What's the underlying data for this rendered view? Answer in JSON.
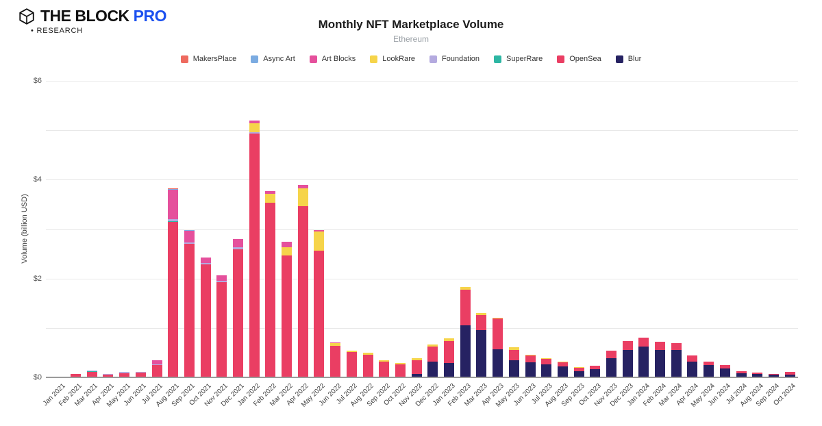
{
  "header": {
    "logo_text": "THE BLOCK",
    "logo_pro": "PRO",
    "logo_sub": "• RESEARCH"
  },
  "colors": {
    "logo_blue": "#1b50ef",
    "grid": "#e8e8e8",
    "axis": "#9b9b9b",
    "tick_text": "#555555",
    "label_text": "#3c3c3c"
  },
  "chart_data": {
    "type": "bar",
    "stacked": true,
    "title": "Monthly NFT Marketplace Volume",
    "subtitle": "Ethereum",
    "xlabel": "",
    "ylabel": "Volume (billion USD)",
    "ylim": [
      0,
      6
    ],
    "yticks_labeled": [
      0,
      2,
      4,
      6
    ],
    "yticks_minor": [
      1,
      3,
      5
    ],
    "ytick_prefix": "$",
    "grid": true,
    "legend_position": "top",
    "stack_order": "bottom-to-top is reverse of series list (Blur at bottom, MakersPlace on top)",
    "categories": [
      "Jan 2021",
      "Feb 2021",
      "Mar 2021",
      "Apr 2021",
      "May 2021",
      "Jun 2021",
      "Jul 2021",
      "Aug 2021",
      "Sep 2021",
      "Oct 2021",
      "Nov 2021",
      "Dec 2021",
      "Jan 2022",
      "Feb 2022",
      "Mar 2022",
      "Apr 2022",
      "May 2022",
      "Jun 2022",
      "Jul 2022",
      "Aug 2022",
      "Sep 2022",
      "Oct 2022",
      "Nov 2022",
      "Dec 2022",
      "Jan 2023",
      "Feb 2023",
      "Mar 2023",
      "Apr 2023",
      "May 2023",
      "Jun 2023",
      "Jul 2023",
      "Aug 2023",
      "Sep 2023",
      "Oct 2023",
      "Nov 2023",
      "Dec 2023",
      "Jan 2024",
      "Feb 2024",
      "Mar 2024",
      "Apr 2024",
      "May 2024",
      "Jun 2024",
      "Jul 2024",
      "Aug 2024",
      "Sep 2024",
      "Oct 2024"
    ],
    "series": [
      {
        "name": "MakersPlace",
        "color": "#ee6a5f",
        "values": [
          0,
          0,
          0,
          0,
          0,
          0,
          0,
          0.02,
          0,
          0,
          0,
          0,
          0,
          0,
          0,
          0,
          0,
          0,
          0,
          0,
          0,
          0,
          0,
          0,
          0,
          0,
          0,
          0,
          0,
          0,
          0,
          0,
          0,
          0,
          0,
          0,
          0,
          0,
          0,
          0,
          0,
          0,
          0,
          0,
          0,
          0
        ]
      },
      {
        "name": "Async Art",
        "color": "#7babe1",
        "values": [
          0,
          0,
          0,
          0,
          0,
          0,
          0,
          0.01,
          0.01,
          0,
          0,
          0,
          0,
          0,
          0,
          0,
          0,
          0,
          0,
          0,
          0,
          0,
          0,
          0,
          0,
          0,
          0,
          0,
          0,
          0,
          0,
          0,
          0,
          0,
          0,
          0,
          0,
          0,
          0,
          0,
          0,
          0,
          0,
          0,
          0,
          0
        ]
      },
      {
        "name": "Art Blocks",
        "color": "#e5509c",
        "values": [
          0,
          0,
          0,
          0,
          0,
          0,
          0.08,
          0.6,
          0.24,
          0.1,
          0.11,
          0.17,
          0.06,
          0.06,
          0.1,
          0.08,
          0.03,
          0.01,
          0,
          0,
          0,
          0,
          0,
          0,
          0,
          0,
          0,
          0,
          0,
          0,
          0,
          0,
          0,
          0,
          0,
          0,
          0,
          0,
          0,
          0,
          0,
          0,
          0,
          0,
          0,
          0
        ]
      },
      {
        "name": "LookRare",
        "color": "#f6d44a",
        "values": [
          0,
          0,
          0,
          0,
          0,
          0,
          0,
          0,
          0,
          0,
          0,
          0,
          0.18,
          0.18,
          0.18,
          0.35,
          0.38,
          0.06,
          0.03,
          0.04,
          0.02,
          0.02,
          0.04,
          0.04,
          0.06,
          0.06,
          0.04,
          0.01,
          0.05,
          0.02,
          0.02,
          0.01,
          0.02,
          0,
          0,
          0,
          0,
          0,
          0,
          0,
          0,
          0,
          0,
          0,
          0,
          0
        ]
      },
      {
        "name": "Foundation",
        "color": "#b4aadf",
        "values": [
          0,
          0.005,
          0.02,
          0.015,
          0.015,
          0.01,
          0.01,
          0.04,
          0.03,
          0.04,
          0.04,
          0.04,
          0.03,
          0,
          0,
          0,
          0,
          0,
          0,
          0,
          0,
          0,
          0,
          0,
          0,
          0,
          0,
          0,
          0,
          0,
          0,
          0,
          0,
          0,
          0,
          0,
          0,
          0,
          0,
          0,
          0,
          0,
          0,
          0,
          0,
          0
        ]
      },
      {
        "name": "SuperRare",
        "color": "#2db6a3",
        "values": [
          0,
          0,
          0.01,
          0,
          0,
          0,
          0,
          0.01,
          0,
          0,
          0,
          0,
          0,
          0,
          0,
          0,
          0,
          0,
          0,
          0,
          0,
          0,
          0,
          0,
          0,
          0,
          0,
          0,
          0,
          0,
          0,
          0,
          0,
          0,
          0,
          0,
          0,
          0,
          0,
          0,
          0,
          0,
          0,
          0,
          0,
          0
        ]
      },
      {
        "name": "OpenSea",
        "color": "#ea3e63",
        "values": [
          0.01,
          0.065,
          0.11,
          0.06,
          0.09,
          0.1,
          0.25,
          3.15,
          2.7,
          2.28,
          1.92,
          2.59,
          4.93,
          3.53,
          2.46,
          3.47,
          2.57,
          0.64,
          0.51,
          0.46,
          0.32,
          0.27,
          0.28,
          0.3,
          0.44,
          0.71,
          0.3,
          0.62,
          0.22,
          0.14,
          0.1,
          0.09,
          0.07,
          0.06,
          0.15,
          0.18,
          0.18,
          0.16,
          0.15,
          0.12,
          0.07,
          0.07,
          0.04,
          0.03,
          0.02,
          0.06
        ]
      },
      {
        "name": "Blur",
        "color": "#262262",
        "values": [
          0,
          0,
          0,
          0,
          0,
          0,
          0,
          0,
          0,
          0,
          0,
          0,
          0,
          0,
          0,
          0,
          0,
          0,
          0,
          0,
          0,
          0,
          0.07,
          0.32,
          0.29,
          1.06,
          0.96,
          0.57,
          0.34,
          0.3,
          0.27,
          0.22,
          0.12,
          0.17,
          0.39,
          0.56,
          0.62,
          0.56,
          0.55,
          0.32,
          0.25,
          0.18,
          0.08,
          0.07,
          0.05,
          0.055
        ]
      }
    ]
  }
}
